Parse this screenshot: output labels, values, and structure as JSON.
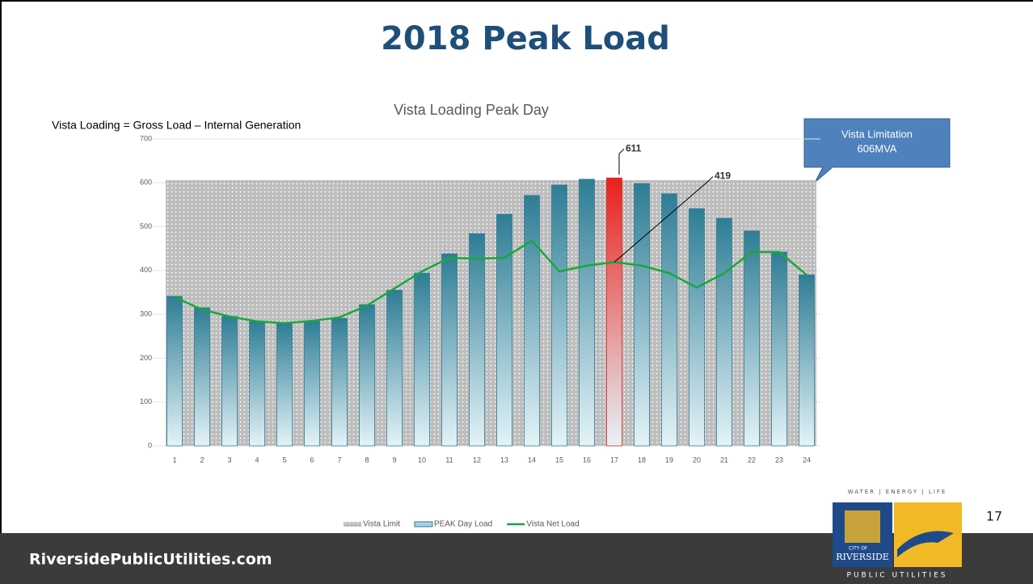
{
  "slide_title": "2018 Peak Load",
  "footer": "RiversidePublicUtilities.com",
  "page_number": "17",
  "logo": {
    "tagline": "WATER | ENERGY | LIFE",
    "city": "CITY OF",
    "name": "RIVERSIDE",
    "sub": "PUBLIC UTILITIES"
  },
  "chart_data": {
    "type": "bar",
    "title": "Vista Loading Peak Day",
    "subtitle": "Vista Loading = Gross Load – Internal Generation",
    "annotation": [
      "Vista Limitation",
      "606MVA"
    ],
    "categories": [
      "1",
      "2",
      "3",
      "4",
      "5",
      "6",
      "7",
      "8",
      "9",
      "10",
      "11",
      "12",
      "13",
      "14",
      "15",
      "16",
      "17",
      "18",
      "19",
      "20",
      "21",
      "22",
      "23",
      "24"
    ],
    "series": [
      {
        "name": "Vista Limit",
        "kind": "area",
        "color": "#bdbdbd",
        "values": [
          606,
          606,
          606,
          606,
          606,
          606,
          606,
          606,
          606,
          606,
          606,
          606,
          606,
          606,
          606,
          606,
          606,
          606,
          606,
          606,
          606,
          606,
          606,
          606
        ]
      },
      {
        "name": "PEAK Day Load",
        "kind": "bar",
        "color": "#2e7d95",
        "colors": [
          "#2e7d95",
          "#2e7d95",
          "#2e7d95",
          "#2e7d95",
          "#2e7d95",
          "#2e7d95",
          "#2e7d95",
          "#2e7d95",
          "#2e7d95",
          "#2e7d95",
          "#2e7d95",
          "#2e7d95",
          "#2e7d95",
          "#2e7d95",
          "#2e7d95",
          "#2e7d95",
          "#e8201c",
          "#2e7d95",
          "#2e7d95",
          "#2e7d95",
          "#2e7d95",
          "#2e7d95",
          "#2e7d95",
          "#2e7d95"
        ],
        "values": [
          341,
          315,
          295,
          284,
          280,
          284,
          291,
          322,
          355,
          394,
          438,
          484,
          528,
          571,
          595,
          608,
          611,
          598,
          575,
          541,
          519,
          490,
          442,
          390
        ],
        "value_labels": [
          null,
          null,
          null,
          null,
          null,
          null,
          null,
          null,
          null,
          null,
          null,
          null,
          null,
          null,
          null,
          null,
          "611",
          null,
          null,
          null,
          null,
          null,
          null,
          null
        ]
      },
      {
        "name": "Vista Net Load",
        "kind": "line",
        "color": "#19a83c",
        "values": [
          339,
          311,
          295,
          284,
          280,
          285,
          293,
          320,
          359,
          398,
          429,
          427,
          429,
          468,
          398,
          411,
          419,
          411,
          394,
          361,
          394,
          442,
          442,
          390
        ],
        "value_labels": [
          null,
          null,
          null,
          null,
          null,
          null,
          null,
          null,
          null,
          null,
          null,
          null,
          null,
          null,
          null,
          null,
          "419",
          null,
          null,
          null,
          null,
          null,
          null,
          null
        ]
      }
    ],
    "ylim": [
      0,
      700
    ],
    "yticks": [
      0,
      100,
      200,
      300,
      400,
      500,
      600,
      700
    ],
    "grid": true,
    "legend": "bottom"
  }
}
